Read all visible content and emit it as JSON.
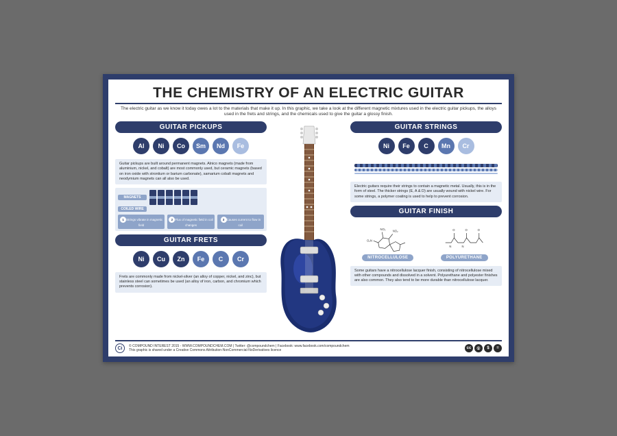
{
  "page_background": "#6b6b6b",
  "poster_border_color": "#2e3d6b",
  "title": "THE CHEMISTRY OF AN ELECTRIC GUITAR",
  "subtitle": "The electric guitar as we know it today owes a lot to the materials that make it up. In this graphic, we take a look at the different magnetic mixtures used in the electric guitar pickups, the alloys used in the frets and strings, and the chemicals used to give the guitar a glossy finish.",
  "element_colors": {
    "dark": "#2e3d6b",
    "mid": "#5b77b0",
    "light": "#a9bde0"
  },
  "sections": {
    "pickups": {
      "header": "GUITAR PICKUPS",
      "elements": [
        {
          "sym": "Al",
          "shade": "dark"
        },
        {
          "sym": "Ni",
          "shade": "dark"
        },
        {
          "sym": "Co",
          "shade": "dark"
        },
        {
          "sym": "Sm",
          "shade": "mid"
        },
        {
          "sym": "Nd",
          "shade": "mid"
        },
        {
          "sym": "Fe",
          "shade": "light"
        }
      ],
      "text": "Guitar pickups are built around permanent magnets. Alnico magnets (made from aluminium, nickel, and cobalt) are most commonly used, but ceramic magnets (based on iron oxide with strontium or barium carbonate), samarium cobalt magnets and neodymium magnets can all also be used.",
      "diagram_labels": {
        "magnets": "MAGNETS",
        "coiled_wire": "COILED WIRE"
      },
      "steps": [
        {
          "n": "1",
          "t": "Strings vibrate in magnetic field"
        },
        {
          "n": "2",
          "t": "Flux of magnetic field in coil changes"
        },
        {
          "n": "3",
          "t": "Causes current to flow in coil"
        }
      ]
    },
    "frets": {
      "header": "GUITAR FRETS",
      "elements": [
        {
          "sym": "Ni",
          "shade": "dark"
        },
        {
          "sym": "Cu",
          "shade": "dark"
        },
        {
          "sym": "Zn",
          "shade": "dark"
        },
        {
          "sym": "Fe",
          "shade": "mid"
        },
        {
          "sym": "C",
          "shade": "mid"
        },
        {
          "sym": "Cr",
          "shade": "mid"
        }
      ],
      "text": "Frets are commonly made from nickel-silver (an alloy of copper, nickel, and zinc), but stainless steel can sometimes be used (an alloy of iron, carbon, and chromium which prevents corrosion)."
    },
    "strings": {
      "header": "GUITAR STRINGS",
      "elements": [
        {
          "sym": "Ni",
          "shade": "dark"
        },
        {
          "sym": "Fe",
          "shade": "dark"
        },
        {
          "sym": "C",
          "shade": "dark"
        },
        {
          "sym": "Mn",
          "shade": "mid"
        },
        {
          "sym": "Cr",
          "shade": "light"
        }
      ],
      "string_colors": [
        "#2e3d6b",
        "#5b77b0",
        "#a9bde0"
      ],
      "text": "Electric guitars require their strings to contain a magnetic metal. Usually, this is in the form of steel. The thicker strings (E, A & D) are usually wound with nickel wire. For some strings, a polymer coating is used to help to prevent corrosion."
    },
    "finish": {
      "header": "GUITAR FINISH",
      "mol1_label": "NITROCELLULOSE",
      "mol2_label": "POLYURETHANE",
      "text": "Some guitars have a nitrocellulose lacquer finish, consisting of nitrocellulose mixed with other compounds and dissolved in a solvent. Polyurethane and polyester finishes are also common. They also tend to be more durable than nitrocellulose lacquer."
    }
  },
  "footer": {
    "logo": "Ci",
    "line1": "© COMPOUND INTEREST 2015 - WWW.COMPOUNDCHEM.COM | Twitter: @compoundchem | Facebook: www.facebook.com/compoundchem",
    "line2": "This graphic is shared under a Creative Commons Attribution-NonCommercial-NoDerivatives licence",
    "cc": [
      "cc",
      "①",
      "$",
      "="
    ]
  },
  "guitar": {
    "body_color": "#1a2d6e",
    "body_highlight": "#3a56c4",
    "neck_color": "#6b3a1a",
    "fret_color": "#d9b88a",
    "headstock_color": "#e8e8e8"
  }
}
